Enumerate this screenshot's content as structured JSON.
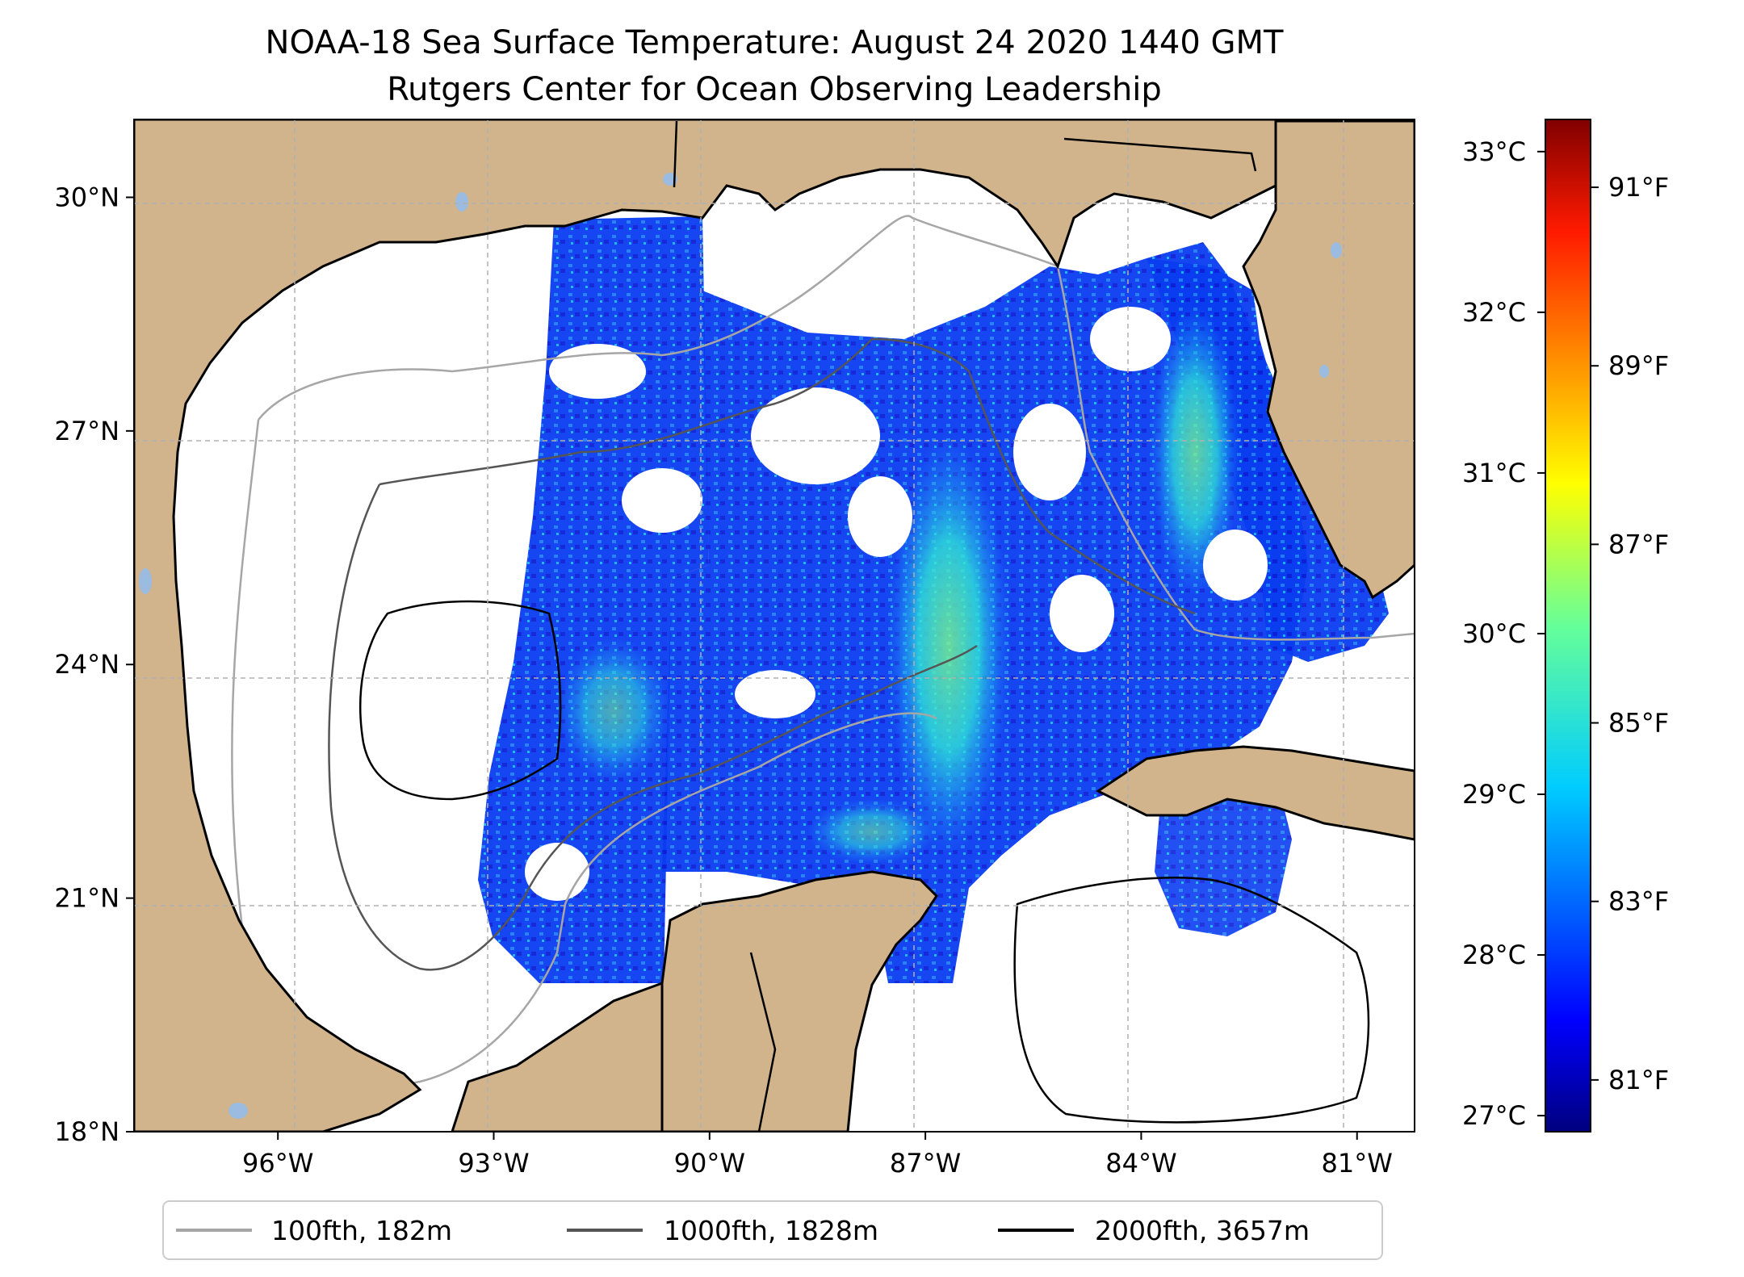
{
  "title": {
    "line1": "NOAA-18 Sea Surface Temperature: August 24 2020 1440 GMT",
    "line2": "Rutgers Center for Ocean Observing Leadership"
  },
  "map": {
    "lon_range": [
      -98.0,
      -80.2
    ],
    "lat_range": [
      18.0,
      31.0
    ],
    "lon_ticks": [
      {
        "value": -96,
        "label": "96°W"
      },
      {
        "value": -93,
        "label": "93°W"
      },
      {
        "value": -90,
        "label": "90°W"
      },
      {
        "value": -87,
        "label": "87°W"
      },
      {
        "value": -84,
        "label": "84°W"
      },
      {
        "value": -81,
        "label": "81°W"
      }
    ],
    "lat_ticks": [
      {
        "value": 18,
        "label": "18°N"
      },
      {
        "value": 21,
        "label": "21°N"
      },
      {
        "value": 24,
        "label": "24°N"
      },
      {
        "value": 27,
        "label": "27°N"
      },
      {
        "value": 30,
        "label": "30°N"
      }
    ],
    "colors": {
      "land": "#d2b48c",
      "lakes": "#9bbce0",
      "coast": "#000000",
      "grid": "#b0b0b0"
    }
  },
  "colorbar": {
    "celsius_range": [
      26.9,
      33.2
    ],
    "celsius_ticks": [
      {
        "value": 27,
        "label": "27°C"
      },
      {
        "value": 28,
        "label": "28°C"
      },
      {
        "value": 29,
        "label": "29°C"
      },
      {
        "value": 30,
        "label": "30°C"
      },
      {
        "value": 31,
        "label": "31°C"
      },
      {
        "value": 32,
        "label": "32°C"
      },
      {
        "value": 33,
        "label": "33°C"
      }
    ],
    "fahrenheit_ticks": [
      {
        "value": 81,
        "label": "81°F"
      },
      {
        "value": 83,
        "label": "83°F"
      },
      {
        "value": 85,
        "label": "85°F"
      },
      {
        "value": 87,
        "label": "87°F"
      },
      {
        "value": 89,
        "label": "89°F"
      },
      {
        "value": 91,
        "label": "91°F"
      }
    ],
    "colormap": "jet"
  },
  "legend": [
    {
      "label": "100fth, 182m",
      "color": "#a6a6a6"
    },
    {
      "label": "1000fth, 1828m",
      "color": "#555555"
    },
    {
      "label": "2000fth, 3657m",
      "color": "#000000"
    }
  ]
}
